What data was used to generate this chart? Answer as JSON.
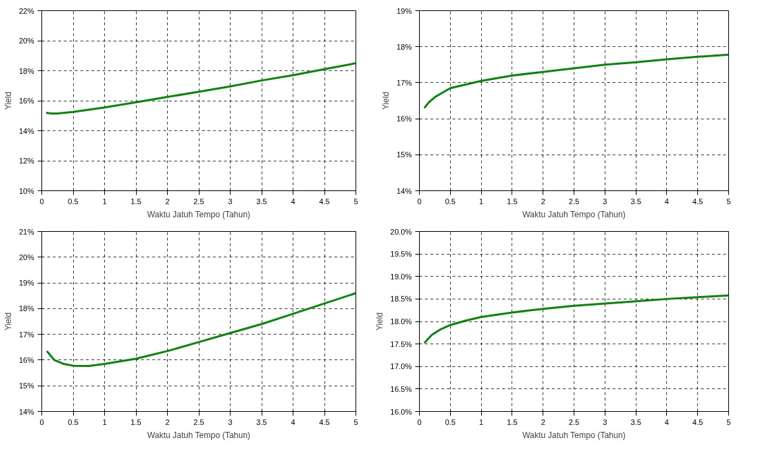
{
  "chart_data": [
    {
      "type": "line",
      "xlabel": "Waktu Jatuh Tempo (Tahun)",
      "ylabel": "Yield",
      "xlim": [
        0,
        5
      ],
      "ylim": [
        10,
        22
      ],
      "xticks": [
        0,
        0.5,
        1,
        1.5,
        2,
        2.5,
        3,
        3.5,
        4,
        4.5,
        5
      ],
      "yticks": [
        {
          "value": 10,
          "label": "10%"
        },
        {
          "value": 12,
          "label": "12%"
        },
        {
          "value": 14,
          "label": "14%"
        },
        {
          "value": 16,
          "label": "16%"
        },
        {
          "value": 18,
          "label": "18%"
        },
        {
          "value": 20,
          "label": "20%"
        },
        {
          "value": 22,
          "label": "22%"
        }
      ],
      "grid": true,
      "marker": "none",
      "line_style": "solid",
      "x": [
        0.07,
        0.15,
        0.25,
        0.5,
        1,
        1.5,
        2,
        2.5,
        3,
        3.5,
        4,
        4.5,
        5
      ],
      "series": [
        {
          "color": "#138013",
          "values": [
            15.2,
            15.15,
            15.15,
            15.25,
            15.55,
            15.9,
            16.25,
            16.6,
            16.95,
            17.35,
            17.7,
            18.1,
            18.5
          ]
        }
      ]
    },
    {
      "type": "line",
      "xlabel": "Waktu Jatuh Tempo (Tahun)",
      "ylabel": "Yield",
      "xlim": [
        0,
        5
      ],
      "ylim": [
        14,
        19
      ],
      "xticks": [
        0,
        0.5,
        1,
        1.5,
        2,
        2.5,
        3,
        3.5,
        4,
        4.5,
        5
      ],
      "yticks": [
        {
          "value": 14,
          "label": "14%"
        },
        {
          "value": 15,
          "label": "15%"
        },
        {
          "value": 16,
          "label": "16%"
        },
        {
          "value": 17,
          "label": "17%"
        },
        {
          "value": 18,
          "label": "18%"
        },
        {
          "value": 19,
          "label": "19%"
        }
      ],
      "grid": true,
      "marker": "none",
      "line_style": "solid",
      "x": [
        0.08,
        0.15,
        0.25,
        0.5,
        0.75,
        1,
        1.5,
        2,
        2.5,
        3,
        3.5,
        4,
        4.5,
        5
      ],
      "series": [
        {
          "color": "#138013",
          "values": [
            16.3,
            16.45,
            16.6,
            16.85,
            16.95,
            17.05,
            17.2,
            17.3,
            17.4,
            17.5,
            17.57,
            17.65,
            17.72,
            17.78
          ]
        }
      ]
    },
    {
      "type": "line",
      "xlabel": "Waktu Jatuh Tempo (Tahun)",
      "ylabel": "Yield",
      "xlim": [
        0,
        5
      ],
      "ylim": [
        14,
        21
      ],
      "xticks": [
        0,
        0.5,
        1,
        1.5,
        2,
        2.5,
        3,
        3.5,
        4,
        4.5,
        5
      ],
      "yticks": [
        {
          "value": 14,
          "label": "14%"
        },
        {
          "value": 15,
          "label": "15%"
        },
        {
          "value": 16,
          "label": "16%"
        },
        {
          "value": 17,
          "label": "17%"
        },
        {
          "value": 18,
          "label": "18%"
        },
        {
          "value": 19,
          "label": "19%"
        },
        {
          "value": 20,
          "label": "20%"
        },
        {
          "value": 21,
          "label": "21%"
        }
      ],
      "grid": true,
      "marker": "none",
      "line_style": "solid",
      "x": [
        0.08,
        0.2,
        0.35,
        0.5,
        0.75,
        1,
        1.5,
        2,
        2.5,
        3,
        3.5,
        4,
        4.5,
        5
      ],
      "series": [
        {
          "color": "#138013",
          "values": [
            16.35,
            16.0,
            15.85,
            15.78,
            15.77,
            15.85,
            16.05,
            16.35,
            16.7,
            17.05,
            17.4,
            17.8,
            18.2,
            18.6
          ]
        }
      ]
    },
    {
      "type": "line",
      "xlabel": "Waktu Jatuh Tempo (Tahun)",
      "ylabel": "Yield",
      "xlim": [
        0,
        5
      ],
      "ylim": [
        16,
        20
      ],
      "xticks": [
        0,
        0.5,
        1,
        1.5,
        2,
        2.5,
        3,
        3.5,
        4,
        4.5,
        5
      ],
      "yticks": [
        {
          "value": 16,
          "label": "16.0%"
        },
        {
          "value": 16.5,
          "label": "16.5%"
        },
        {
          "value": 17,
          "label": "17.0%"
        },
        {
          "value": 17.5,
          "label": "17.5%"
        },
        {
          "value": 18,
          "label": "18.0%"
        },
        {
          "value": 18.5,
          "label": "18.5%"
        },
        {
          "value": 19,
          "label": "19.0%"
        },
        {
          "value": 19.5,
          "label": "19.5%"
        },
        {
          "value": 20,
          "label": "20.0%"
        }
      ],
      "grid": true,
      "marker": "none",
      "line_style": "solid",
      "x": [
        0.08,
        0.2,
        0.35,
        0.5,
        0.75,
        1,
        1.5,
        2,
        2.5,
        3,
        3.5,
        4,
        4.5,
        5
      ],
      "series": [
        {
          "color": "#138013",
          "values": [
            17.52,
            17.7,
            17.83,
            17.92,
            18.02,
            18.1,
            18.2,
            18.28,
            18.35,
            18.4,
            18.45,
            18.5,
            18.54,
            18.58
          ]
        }
      ]
    }
  ]
}
